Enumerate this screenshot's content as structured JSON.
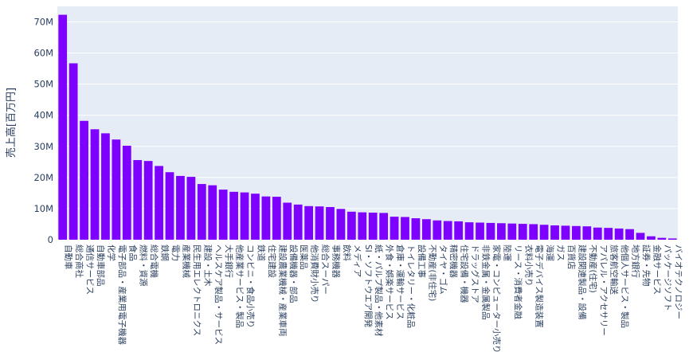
{
  "chart_data": {
    "type": "bar",
    "title": "",
    "xlabel": "",
    "ylabel": "売上高[百万円]",
    "ylim": [
      0,
      75000000
    ],
    "y_ticks": [
      {
        "value": 0,
        "label": "0"
      },
      {
        "value": 10000000,
        "label": "10M"
      },
      {
        "value": 20000000,
        "label": "20M"
      },
      {
        "value": 30000000,
        "label": "30M"
      },
      {
        "value": 40000000,
        "label": "40M"
      },
      {
        "value": 50000000,
        "label": "50M"
      },
      {
        "value": 60000000,
        "label": "60M"
      },
      {
        "value": 70000000,
        "label": "70M"
      }
    ],
    "grid": true,
    "bar_color": "#7e00ff",
    "plot_bg": "#e5ecf6",
    "categories": [
      "自動車",
      "総合商社",
      "通信サービス",
      "自動車部品",
      "化学",
      "電子部品・産業用電子機器",
      "食品",
      "燃料・資源",
      "総合電機",
      "鉄鋼",
      "電力",
      "産業機械",
      "民生用エレクトロニクス",
      "建設・土木",
      "ヘルスケア製品・サービス",
      "大手銀行",
      "他産業サービス・製品",
      "コンビニ・食品小売り",
      "鉄道",
      "住宅建設",
      "建設農業機械・産業車両",
      "設備機器・部品",
      "医薬品",
      "他消費財小売り",
      "総合スーパー",
      "事務機器",
      "飲料",
      "メディア",
      "SI・ソフトウエア開発",
      "紙・パルプ製品・他素材",
      "外食・娯楽サービス",
      "倉庫・運輸サービス",
      "トイレタリー・化粧品",
      "設備工事",
      "不動産(非住宅)",
      "タイヤ・ゴム",
      "精密機器",
      "住宅設備・機器",
      "ドラッグストア",
      "非鉄金属・金属製品",
      "家電・コンピューター小売り",
      "陸運",
      "リース・消費者金融",
      "衣料小売り",
      "電子デバイス製造装置",
      "海運",
      "ガス",
      "百貨店",
      "建設関連製品・設備",
      "不動産(住宅)",
      "アパレル・アクセサリー",
      "旅客航空輸送",
      "他個人サービス・製品",
      "地方銀行",
      "証券・先物",
      "金融サービス",
      "パッケージソフト",
      "バイオテクノロジー"
    ],
    "values": [
      72300000,
      56700000,
      38200000,
      35500000,
      34200000,
      32200000,
      30200000,
      25600000,
      25300000,
      23700000,
      21700000,
      20500000,
      20200000,
      17900000,
      17500000,
      16100000,
      15400000,
      15200000,
      14800000,
      13900000,
      13800000,
      11900000,
      11300000,
      10800000,
      10700000,
      10500000,
      9900000,
      9000000,
      8800000,
      8700000,
      8600000,
      7400000,
      7300000,
      6900000,
      6600000,
      6200000,
      6000000,
      5900000,
      5600000,
      5500000,
      5400000,
      5300000,
      5200000,
      5100000,
      5000000,
      4800000,
      4600000,
      4500000,
      4400000,
      4300000,
      3900000,
      3800000,
      3600000,
      3400000,
      2200000,
      1100000,
      600000,
      400000
    ]
  }
}
